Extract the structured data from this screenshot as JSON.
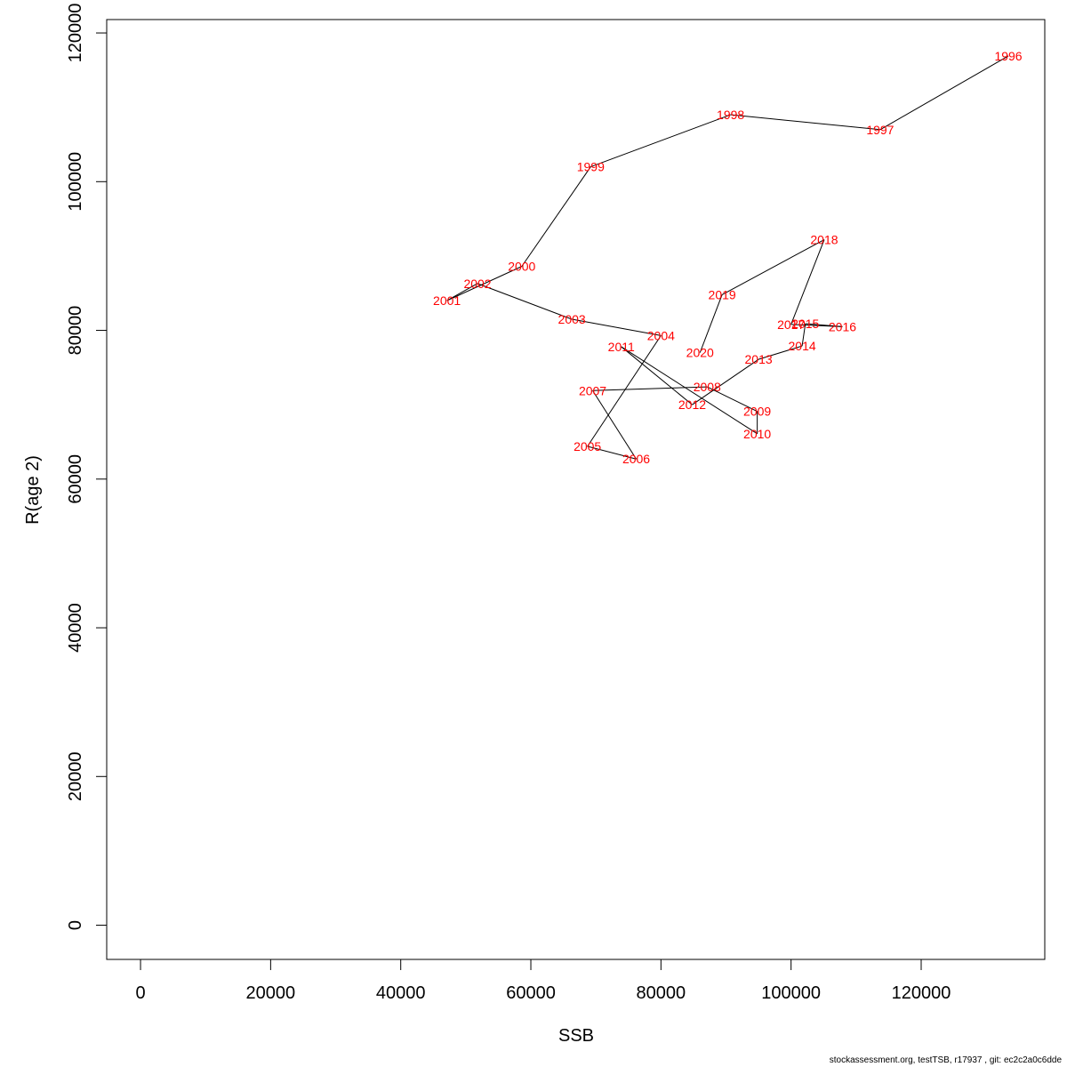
{
  "chart_data": {
    "type": "line",
    "xlabel": "SSB",
    "ylabel": "R(age 2)",
    "xlim": [
      -5200,
      139000
    ],
    "ylim": [
      -4600,
      121800
    ],
    "x_ticks": [
      0,
      20000,
      40000,
      60000,
      80000,
      100000,
      120000
    ],
    "y_ticks": [
      0,
      20000,
      40000,
      60000,
      80000,
      100000,
      120000
    ],
    "line_color": "#000000",
    "label_color": "#ff0000",
    "grid": false,
    "points": [
      {
        "year": "1996",
        "x": 133400,
        "y": 116900
      },
      {
        "year": "1997",
        "x": 113700,
        "y": 107000
      },
      {
        "year": "1998",
        "x": 90700,
        "y": 109000
      },
      {
        "year": "1999",
        "x": 69200,
        "y": 102000
      },
      {
        "year": "2000",
        "x": 58600,
        "y": 88600
      },
      {
        "year": "2001",
        "x": 47100,
        "y": 84000
      },
      {
        "year": "2002",
        "x": 51800,
        "y": 86300
      },
      {
        "year": "2003",
        "x": 66300,
        "y": 81500
      },
      {
        "year": "2004",
        "x": 80000,
        "y": 79300
      },
      {
        "year": "2005",
        "x": 68700,
        "y": 64400
      },
      {
        "year": "2006",
        "x": 76200,
        "y": 62700
      },
      {
        "year": "2007",
        "x": 69500,
        "y": 71900
      },
      {
        "year": "2008",
        "x": 87100,
        "y": 72400
      },
      {
        "year": "2009",
        "x": 94800,
        "y": 69100
      },
      {
        "year": "2010",
        "x": 94800,
        "y": 66100
      },
      {
        "year": "2011",
        "x": 73900,
        "y": 77800
      },
      {
        "year": "2012",
        "x": 84800,
        "y": 70000
      },
      {
        "year": "2013",
        "x": 95000,
        "y": 76100
      },
      {
        "year": "2014",
        "x": 101700,
        "y": 77900
      },
      {
        "year": "2015",
        "x": 102200,
        "y": 80900
      },
      {
        "year": "2016",
        "x": 107900,
        "y": 80500
      },
      {
        "year": "2017",
        "x": 100000,
        "y": 80800
      },
      {
        "year": "2018",
        "x": 105100,
        "y": 92200
      },
      {
        "year": "2019",
        "x": 89400,
        "y": 84800
      },
      {
        "year": "2020",
        "x": 86000,
        "y": 77000
      }
    ]
  },
  "footer": "stockassessment.org, testTSB, r17937 , git: ec2c2a0c6dde"
}
